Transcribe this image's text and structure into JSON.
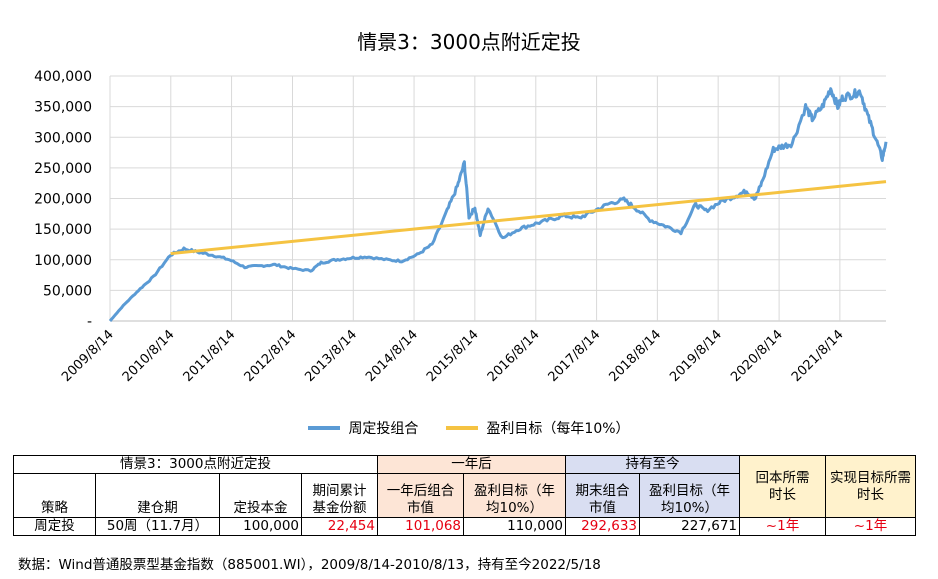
{
  "chart_data": {
    "type": "line",
    "title": "情景3：3000点附近定投",
    "ylim": [
      0,
      400000
    ],
    "y_ticks": [
      "-",
      "50,000",
      "100,000",
      "150,000",
      "200,000",
      "250,000",
      "300,000",
      "350,000",
      "400,000"
    ],
    "y_tick_values": [
      0,
      50000,
      100000,
      150000,
      200000,
      250000,
      300000,
      350000,
      400000
    ],
    "x_ticks": [
      "2009/8/14",
      "2010/8/14",
      "2011/8/14",
      "2012/8/14",
      "2013/8/14",
      "2014/8/14",
      "2015/8/14",
      "2016/8/14",
      "2017/8/14",
      "2018/8/14",
      "2019/8/14",
      "2020/8/14",
      "2021/8/14"
    ],
    "x_range": [
      "2009/8/14",
      "2022/5/18"
    ],
    "grid": true,
    "legend_position": "bottom",
    "series": [
      {
        "name": "周定投组合",
        "color": "#5b9bd5",
        "points": [
          [
            "2009/8/14",
            0
          ],
          [
            "2009/11/1",
            25000
          ],
          [
            "2010/2/1",
            50000
          ],
          [
            "2010/5/1",
            72000
          ],
          [
            "2010/8/13",
            108000
          ],
          [
            "2010/11/1",
            118000
          ],
          [
            "2011/2/1",
            112000
          ],
          [
            "2011/5/1",
            107000
          ],
          [
            "2011/8/1",
            100000
          ],
          [
            "2011/11/1",
            88000
          ],
          [
            "2012/2/1",
            90000
          ],
          [
            "2012/5/1",
            92000
          ],
          [
            "2012/8/1",
            86000
          ],
          [
            "2012/12/1",
            82000
          ],
          [
            "2013/2/1",
            95000
          ],
          [
            "2013/5/1",
            100000
          ],
          [
            "2013/8/1",
            103000
          ],
          [
            "2013/11/1",
            105000
          ],
          [
            "2014/3/1",
            100000
          ],
          [
            "2014/6/1",
            98000
          ],
          [
            "2014/9/1",
            108000
          ],
          [
            "2014/12/1",
            125000
          ],
          [
            "2015/3/1",
            180000
          ],
          [
            "2015/5/1",
            220000
          ],
          [
            "2015/6/12",
            258000
          ],
          [
            "2015/7/10",
            170000
          ],
          [
            "2015/8/14",
            185000
          ],
          [
            "2015/9/15",
            140000
          ],
          [
            "2015/11/1",
            185000
          ],
          [
            "2016/1/28",
            135000
          ],
          [
            "2016/5/1",
            150000
          ],
          [
            "2016/8/1",
            158000
          ],
          [
            "2016/11/1",
            165000
          ],
          [
            "2017/2/1",
            172000
          ],
          [
            "2017/5/1",
            168000
          ],
          [
            "2017/8/1",
            180000
          ],
          [
            "2017/11/1",
            192000
          ],
          [
            "2018/1/25",
            198000
          ],
          [
            "2018/4/1",
            185000
          ],
          [
            "2018/7/1",
            165000
          ],
          [
            "2018/10/1",
            155000
          ],
          [
            "2019/1/3",
            145000
          ],
          [
            "2019/4/1",
            190000
          ],
          [
            "2019/6/1",
            180000
          ],
          [
            "2019/9/1",
            195000
          ],
          [
            "2019/12/1",
            205000
          ],
          [
            "2020/2/1",
            212000
          ],
          [
            "2020/3/23",
            200000
          ],
          [
            "2020/5/1",
            225000
          ],
          [
            "2020/7/10",
            280000
          ],
          [
            "2020/9/1",
            285000
          ],
          [
            "2020/11/1",
            290000
          ],
          [
            "2021/1/20",
            350000
          ],
          [
            "2021/3/1",
            330000
          ],
          [
            "2021/5/1",
            350000
          ],
          [
            "2021/6/20",
            380000
          ],
          [
            "2021/8/1",
            350000
          ],
          [
            "2021/9/1",
            365000
          ],
          [
            "2021/11/1",
            370000
          ],
          [
            "2021/12/15",
            375000
          ],
          [
            "2022/1/28",
            335000
          ],
          [
            "2022/3/15",
            300000
          ],
          [
            "2022/4/26",
            265000
          ],
          [
            "2022/5/18",
            292633
          ]
        ]
      },
      {
        "name": "盈利目标（每年10%）",
        "color": "#f5c342",
        "points": [
          [
            "2010/8/13",
            110000
          ],
          [
            "2022/5/18",
            227671
          ]
        ]
      }
    ]
  },
  "table": {
    "header_scenario": "情景3：3000点附近定投",
    "header_one_year": "一年后",
    "header_hold": "持有至今",
    "header_return_principal": "回本所需时长",
    "header_reach_target": "实现目标所需时长",
    "col_strategy": "策略",
    "col_build_period": "建仓期",
    "col_principal": "定投本金",
    "col_shares": "期间累计基金份额",
    "col_1y_value": "一年后组合市值",
    "col_1y_target": "盈利目标（年均10%）",
    "col_end_value": "期末组合市值",
    "col_end_target": "盈利目标（年均10%）",
    "row": {
      "strategy": "周定投",
      "build_period": "50周（11.7月）",
      "principal": "100,000",
      "shares": "22,454",
      "value_1y": "101,068",
      "target_1y": "110,000",
      "value_end": "292,633",
      "target_end": "227,671",
      "return_time": "~1年",
      "target_time": "~1年"
    }
  },
  "source_note": "数据：Wind普通股票型基金指数（885001.WI），2009/8/14-2010/8/13，持有至今2022/5/18"
}
